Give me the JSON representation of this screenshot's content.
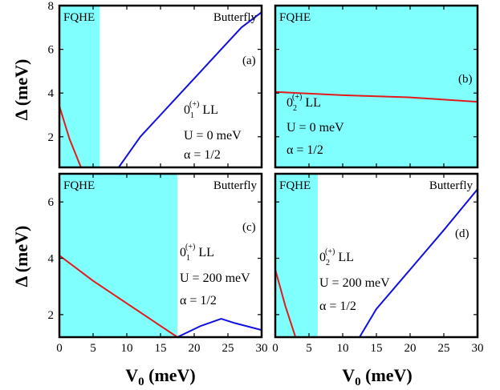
{
  "figure": {
    "ylabel": "Δ (meV)",
    "xlabel_main": "V",
    "xlabel_sub": "0",
    "xlabel_unit": " (meV)"
  },
  "colors": {
    "fqhe_fill": "#80FFFF",
    "red": "#E31A1C",
    "blue": "#1010E0",
    "axis": "#000000"
  },
  "chart_data": [
    {
      "id": "a",
      "type": "line",
      "panel_label": "(a)",
      "xlim": [
        0,
        30
      ],
      "ylim": [
        0.6,
        8
      ],
      "xticks": [
        0,
        5,
        10,
        15,
        20,
        25,
        30
      ],
      "yticks": [
        2,
        4,
        6,
        8
      ],
      "show_x_ticklabels": false,
      "show_y_ticklabels": true,
      "region": {
        "label": "FQHE",
        "x_from": 0,
        "x_to": 6.0
      },
      "region_right_label": "Butterfly",
      "ll_label": {
        "main": "0",
        "sub": "1",
        "sup": "(+)",
        "suffix": " LL"
      },
      "notes": [
        "U = 0 meV",
        "α = 1/2"
      ],
      "series": [
        {
          "color": "red",
          "x": [
            0,
            1.5,
            3.2
          ],
          "y": [
            3.4,
            1.9,
            0.6
          ]
        },
        {
          "color": "blue",
          "x": [
            8.8,
            12,
            15,
            18,
            21,
            24,
            27,
            30
          ],
          "y": [
            0.6,
            2.0,
            3.0,
            4.0,
            5.0,
            6.0,
            7.0,
            7.7
          ]
        }
      ]
    },
    {
      "id": "b",
      "type": "line",
      "panel_label": "(b)",
      "xlim": [
        0,
        30
      ],
      "ylim": [
        0.6,
        8
      ],
      "xticks": [
        0,
        5,
        10,
        15,
        20,
        25,
        30
      ],
      "yticks": [
        2,
        4,
        6,
        8
      ],
      "show_x_ticklabels": false,
      "show_y_ticklabels": false,
      "region": {
        "label": "FQHE",
        "x_from": 0,
        "x_to": 30
      },
      "region_right_label": "",
      "ll_label": {
        "main": "0",
        "sub": "2",
        "sup": "(+)",
        "suffix": " LL"
      },
      "notes": [
        "U = 0 meV",
        "α = 1/2"
      ],
      "series": [
        {
          "color": "red",
          "x": [
            0,
            10,
            20,
            30
          ],
          "y": [
            4.05,
            3.9,
            3.8,
            3.6
          ]
        }
      ]
    },
    {
      "id": "c",
      "type": "line",
      "panel_label": "(c)",
      "xlim": [
        0,
        30
      ],
      "ylim": [
        1.2,
        7.0
      ],
      "xticks": [
        0,
        5,
        10,
        15,
        20,
        25,
        30
      ],
      "yticks": [
        2,
        4,
        6
      ],
      "show_x_ticklabels": true,
      "show_y_ticklabels": true,
      "region": {
        "label": "FQHE",
        "x_from": 0,
        "x_to": 17.5
      },
      "region_right_label": "Butterfly",
      "ll_label": {
        "main": "0",
        "sub": "1",
        "sup": "(+)",
        "suffix": " LL"
      },
      "notes": [
        "U = 200 meV",
        "α = 1/2"
      ],
      "series": [
        {
          "color": "red",
          "x": [
            0,
            5,
            10,
            15,
            17.5
          ],
          "y": [
            4.1,
            3.2,
            2.4,
            1.6,
            1.2
          ]
        },
        {
          "color": "blue",
          "x": [
            17.5,
            21,
            24,
            26,
            30
          ],
          "y": [
            1.2,
            1.6,
            1.85,
            1.7,
            1.45
          ]
        }
      ]
    },
    {
      "id": "d",
      "type": "line",
      "panel_label": "(d)",
      "xlim": [
        0,
        30
      ],
      "ylim": [
        1.2,
        7.0
      ],
      "xticks": [
        0,
        5,
        10,
        15,
        20,
        25,
        30
      ],
      "yticks": [
        2,
        4,
        6
      ],
      "show_x_ticklabels": true,
      "show_y_ticklabels": false,
      "region": {
        "label": "FQHE",
        "x_from": 0,
        "x_to": 6.3
      },
      "region_right_label": "Butterfly",
      "ll_label": {
        "main": "0",
        "sub": "2",
        "sup": "(+)",
        "suffix": " LL"
      },
      "notes": [
        "U = 200 meV",
        "α = 1/2"
      ],
      "series": [
        {
          "color": "red",
          "x": [
            0,
            1.5,
            3.0
          ],
          "y": [
            3.6,
            2.3,
            1.2
          ]
        },
        {
          "color": "blue",
          "x": [
            12.5,
            15,
            20,
            25,
            30
          ],
          "y": [
            1.2,
            2.2,
            3.6,
            5.0,
            6.45
          ]
        }
      ]
    }
  ]
}
